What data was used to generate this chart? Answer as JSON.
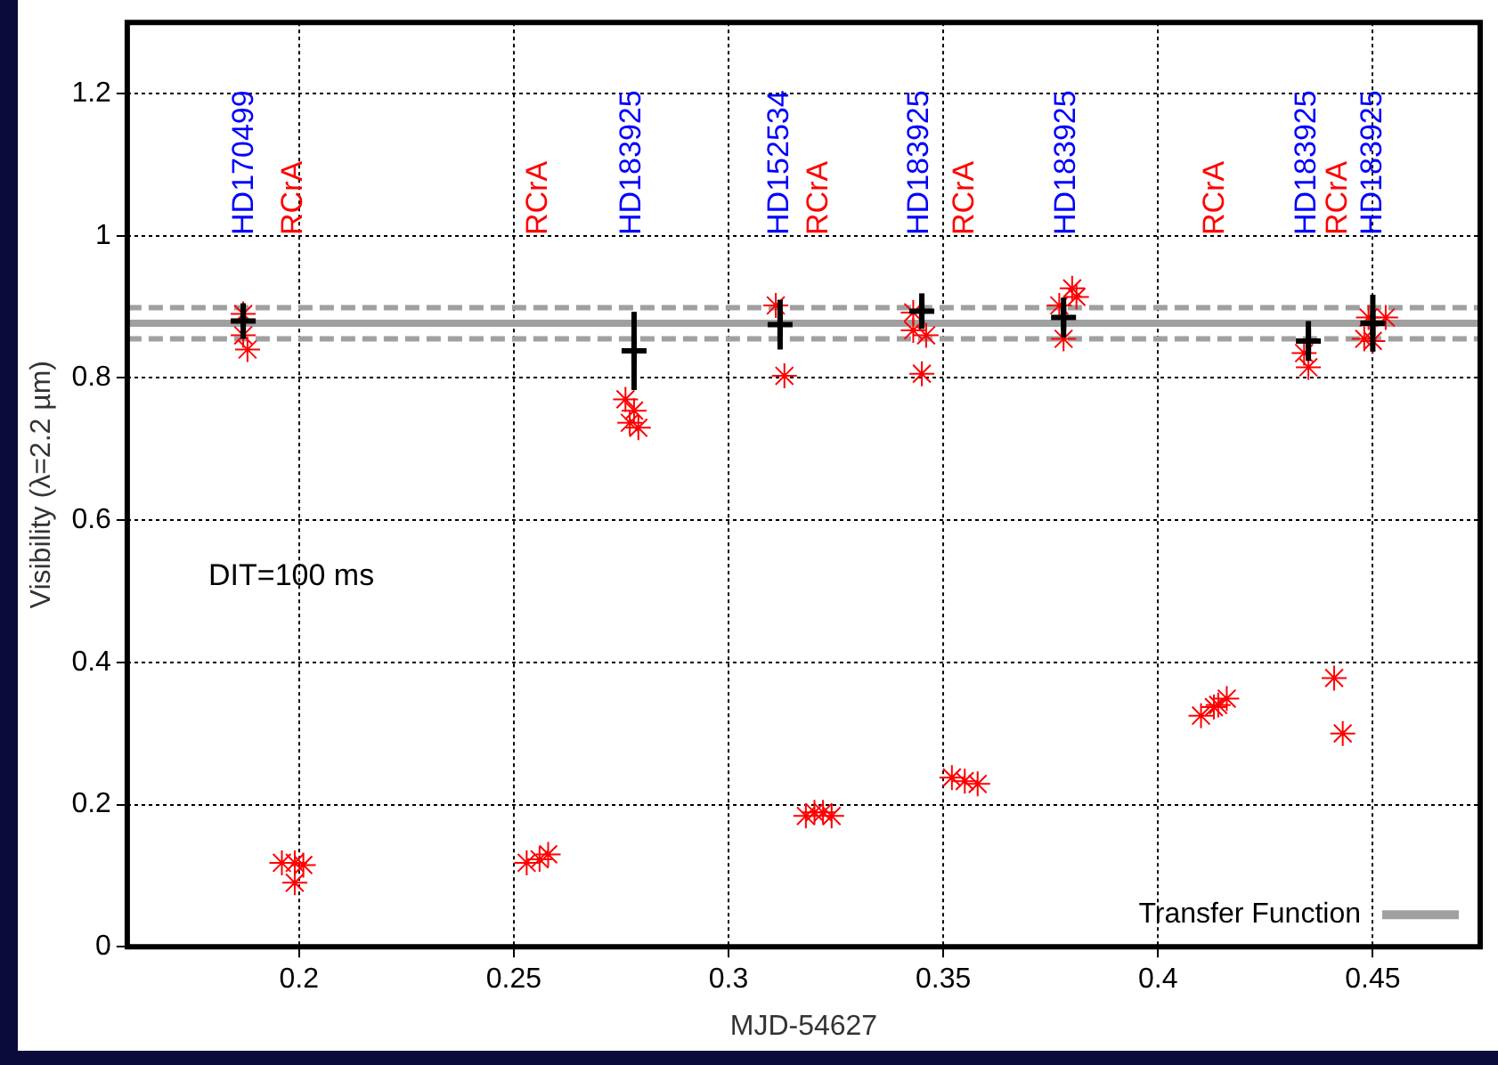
{
  "chart_data": {
    "type": "scatter",
    "xlabel": "MJD-54627",
    "ylabel": "Visibility (λ=2.2 µm)",
    "xlim": [
      0.16,
      0.475
    ],
    "xticks": [
      0.2,
      0.25,
      0.3,
      0.35,
      0.4,
      0.45
    ],
    "ylim": [
      0,
      1.3
    ],
    "yticks": [
      0,
      0.2,
      0.4,
      0.6,
      0.8,
      1,
      1.2
    ],
    "grid": true,
    "legend": "bottom right",
    "series": [
      {
        "type": "line",
        "name": "Transfer Function",
        "color": "#a0a0a0",
        "marker": "none",
        "x": [
          0.16,
          0.475
        ],
        "values": [
          0.877,
          0.877
        ]
      },
      {
        "color": "#ff0000",
        "x": [
          0.187,
          0.187,
          0.188,
          0.196,
          0.199,
          0.199,
          0.201,
          0.253,
          0.256,
          0.258,
          0.276,
          0.278,
          0.279,
          0.277,
          0.311,
          0.313,
          0.318,
          0.32,
          0.322,
          0.324,
          0.343,
          0.343,
          0.346,
          0.345,
          0.352,
          0.355,
          0.358,
          0.38,
          0.377,
          0.381,
          0.378,
          0.41,
          0.413,
          0.416,
          0.414,
          0.434,
          0.435,
          0.441,
          0.443,
          0.449,
          0.453,
          0.45,
          0.448
        ],
        "values": [
          0.89,
          0.86,
          0.84,
          0.118,
          0.118,
          0.09,
          0.115,
          0.118,
          0.123,
          0.13,
          0.77,
          0.754,
          0.73,
          0.737,
          0.902,
          0.803,
          0.184,
          0.189,
          0.189,
          0.184,
          0.892,
          0.867,
          0.86,
          0.806,
          0.238,
          0.233,
          0.229,
          0.926,
          0.902,
          0.914,
          0.855,
          0.325,
          0.337,
          0.349,
          0.34,
          0.835,
          0.815,
          0.378,
          0.3,
          0.885,
          0.885,
          0.852,
          0.855
        ]
      },
      {
        "color": "#000000",
        "marker": "cross",
        "x": [
          0.187,
          0.278,
          0.312,
          0.345,
          0.378,
          0.435,
          0.45
        ],
        "values": [
          0.88,
          0.838,
          0.875,
          0.894,
          0.885,
          0.852,
          0.877
        ],
        "errors": [
          0.025,
          0.055,
          0.035,
          0.025,
          0.028,
          0.028,
          0.04
        ]
      }
    ],
    "ref_lines": [
      {
        "axis": "y",
        "value": 0.899,
        "color": "#a0a0a0",
        "line_style": "dashed"
      },
      {
        "axis": "y",
        "value": 0.855,
        "color": "#a0a0a0",
        "line_style": "dashed"
      }
    ],
    "annotations": [
      "DIT=100 ms",
      "HD170499",
      "RCrA",
      "RCrA",
      "HD183925",
      "HD152534",
      "RCrA",
      "HD183925",
      "RCrA",
      "HD183925",
      "RCrA",
      "HD183925",
      "RCrA",
      "HD183925"
    ]
  }
}
